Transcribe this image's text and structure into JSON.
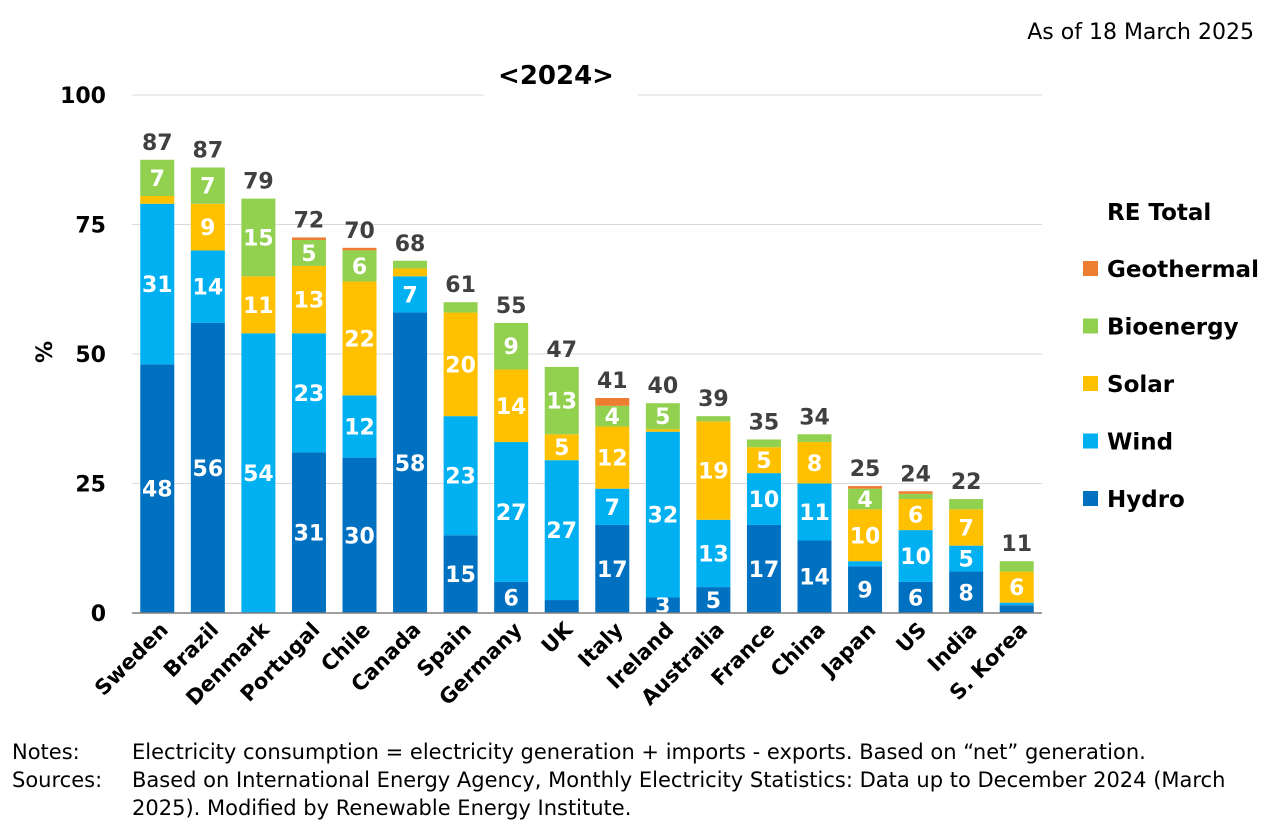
{
  "as_of": "As of 18 March 2025",
  "notes": {
    "notes_label": "Notes:",
    "notes_text": "Electricity consumption = electricity generation + imports - exports. Based on “net” generation.",
    "sources_label": "Sources:",
    "sources_text": "Based on International Energy Agency, Monthly Electricity Statistics: Data up to December 2024 (March 2025). Modified by Renewable Energy Institute."
  },
  "colors": {
    "Hydro": "#0070c0",
    "Wind": "#00b0f0",
    "Solar": "#ffc000",
    "Bioenergy": "#92d050",
    "Geothermal": "#ed7d31"
  },
  "chart_data": {
    "type": "bar",
    "stacked": true,
    "title": "<2024>",
    "xlabel": "",
    "ylabel": "%",
    "ylim": [
      0,
      100
    ],
    "yticks": [
      0,
      25,
      50,
      75,
      100
    ],
    "grid": true,
    "legend_title": "RE Total",
    "legend_position": "right",
    "categories": [
      "Sweden",
      "Brazil",
      "Denmark",
      "Portugal",
      "Chile",
      "Canada",
      "Spain",
      "Germany",
      "UK",
      "Italy",
      "Ireland",
      "Australia",
      "France",
      "China",
      "Japan",
      "US",
      "India",
      "S. Korea"
    ],
    "totals": [
      87,
      87,
      79,
      72,
      70,
      68,
      61,
      55,
      47,
      41,
      40,
      39,
      35,
      34,
      25,
      24,
      22,
      11
    ],
    "series": [
      {
        "name": "Hydro",
        "values": [
          48,
          56,
          0,
          31,
          30,
          58,
          15,
          6,
          2.5,
          17,
          3,
          5,
          17,
          14,
          9,
          6,
          8,
          1.5
        ],
        "labels": [
          "48",
          "56",
          "",
          "31",
          "30",
          "58",
          "15",
          "6",
          "",
          "17",
          "3",
          "5",
          "17",
          "14",
          "9",
          "6",
          "8",
          ""
        ]
      },
      {
        "name": "Wind",
        "values": [
          31,
          14,
          54,
          23,
          12,
          7,
          23,
          27,
          27,
          7,
          32,
          13,
          10,
          11,
          1,
          10,
          5,
          0.5
        ],
        "labels": [
          "31",
          "14",
          "54",
          "23",
          "12",
          "7",
          "23",
          "27",
          "27",
          "7",
          "32",
          "13",
          "10",
          "11",
          "",
          "10",
          "5",
          ""
        ]
      },
      {
        "name": "Solar",
        "values": [
          1.5,
          9,
          11,
          13,
          22,
          1.5,
          20,
          14,
          5,
          12,
          0.5,
          19,
          5,
          8,
          10,
          6,
          7,
          6
        ],
        "labels": [
          "",
          "9",
          "11",
          "13",
          "22",
          "",
          "20",
          "14",
          "5",
          "12",
          "",
          "19",
          "5",
          "8",
          "10",
          "6",
          "7",
          "6"
        ]
      },
      {
        "name": "Bioenergy",
        "values": [
          7,
          7,
          15,
          5,
          6,
          1.5,
          2,
          9,
          13,
          4,
          5,
          1,
          1.5,
          1.5,
          4,
          1,
          2,
          2
        ],
        "labels": [
          "7",
          "7",
          "15",
          "5",
          "6",
          "",
          "",
          "9",
          "13",
          "4",
          "5",
          "",
          "",
          "",
          "4",
          "",
          "",
          ""
        ]
      },
      {
        "name": "Geothermal",
        "values": [
          0,
          0,
          0,
          0.5,
          0.5,
          0,
          0,
          0,
          0,
          1.5,
          0,
          0,
          0,
          0,
          0.5,
          0.5,
          0,
          0
        ],
        "labels": [
          "",
          "",
          "",
          "",
          "",
          "",
          "",
          "",
          "",
          "",
          "",
          "",
          "",
          "",
          "",
          "",
          "",
          ""
        ]
      }
    ],
    "legend_order": [
      "Geothermal",
      "Bioenergy",
      "Solar",
      "Wind",
      "Hydro"
    ]
  }
}
